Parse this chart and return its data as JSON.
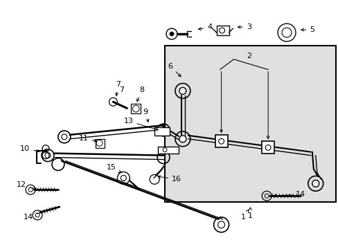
{
  "bg": "#ffffff",
  "inset_bg": "#e0e0e0",
  "lc": "#000000",
  "fig_w": 4.89,
  "fig_h": 3.6,
  "dpi": 100
}
